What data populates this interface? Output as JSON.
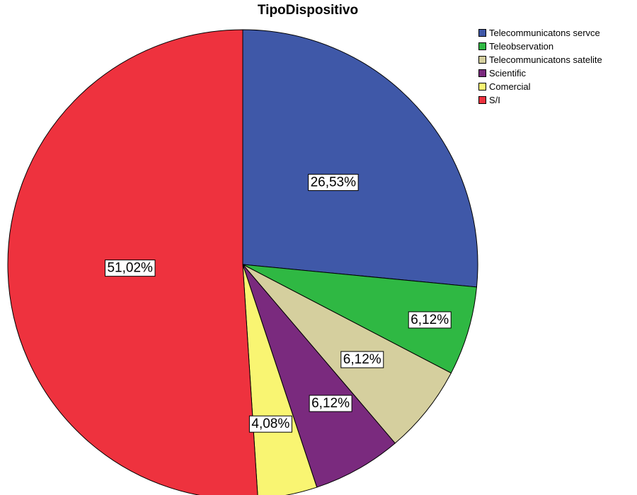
{
  "chart_data": {
    "type": "pie",
    "title": "TipoDispositivo",
    "legend_position": "top-right",
    "slices": [
      {
        "name": "Telecommunicatons servce",
        "value": 26.53,
        "label": "26,53%",
        "color": "#3F58A8"
      },
      {
        "name": "Teleobservation",
        "value": 6.12,
        "label": "6,12%",
        "color": "#2FB843"
      },
      {
        "name": "Telecommunicatons satelite",
        "value": 6.12,
        "label": "6,12%",
        "color": "#D5CF9E"
      },
      {
        "name": "Scientific",
        "value": 6.12,
        "label": "6,12%",
        "color": "#7A2A7E"
      },
      {
        "name": "Comercial",
        "value": 4.08,
        "label": "4,08%",
        "color": "#F9F572"
      },
      {
        "name": "S/I",
        "value": 51.02,
        "label": "51,02%",
        "color": "#EE323E"
      }
    ]
  }
}
